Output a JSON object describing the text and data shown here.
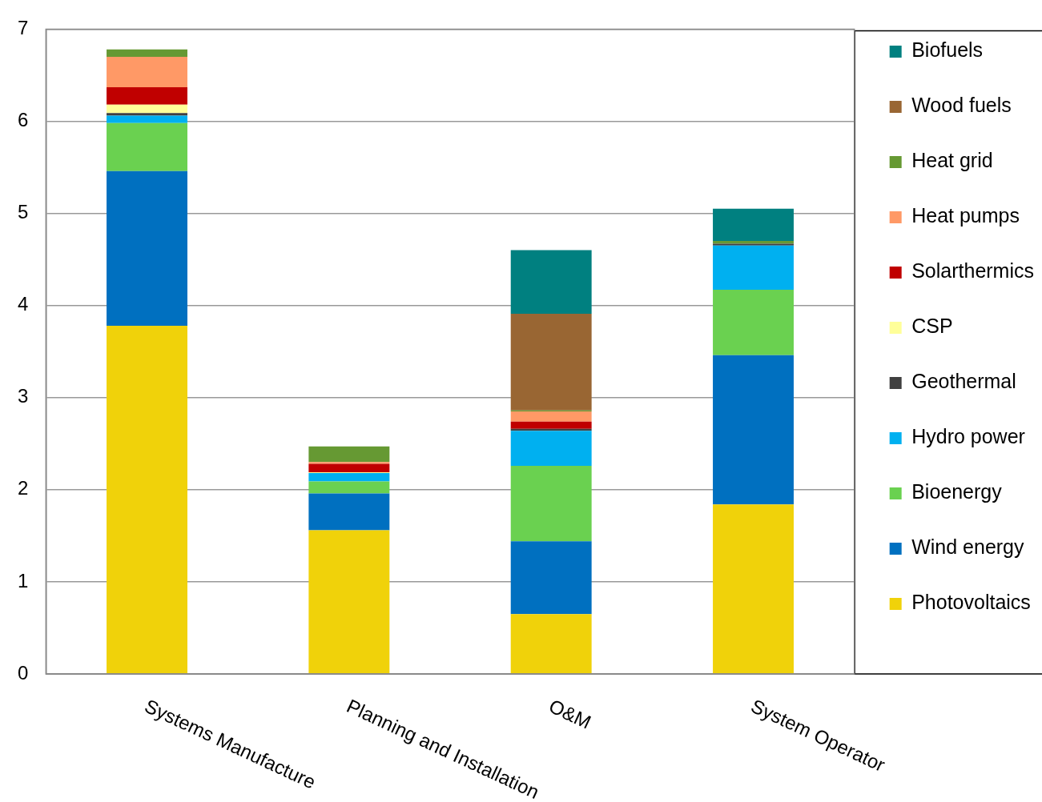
{
  "chart_data": {
    "type": "bar",
    "stacked": true,
    "categories": [
      "Systems Manufacture",
      "Planning and Installation",
      "O&M",
      "System Operator"
    ],
    "series": [
      {
        "name": "Photovoltaics",
        "color": "#f0d20a",
        "values": [
          3.78,
          1.56,
          0.65,
          1.84
        ]
      },
      {
        "name": "Wind energy",
        "color": "#0070c0",
        "values": [
          1.68,
          0.4,
          0.79,
          1.62
        ]
      },
      {
        "name": "Bioenergy",
        "color": "#6ad150",
        "values": [
          0.52,
          0.13,
          0.82,
          0.71
        ]
      },
      {
        "name": "Hydro power",
        "color": "#00b0f0",
        "values": [
          0.08,
          0.09,
          0.38,
          0.48
        ]
      },
      {
        "name": "Geothermal",
        "color": "#404040",
        "values": [
          0.03,
          0,
          0.02,
          0.02
        ]
      },
      {
        "name": "CSP",
        "color": "#ffff99",
        "values": [
          0.09,
          0.01,
          0,
          0
        ]
      },
      {
        "name": "Solarthermics",
        "color": "#c00000",
        "values": [
          0.19,
          0.09,
          0.08,
          0
        ]
      },
      {
        "name": "Heat pumps",
        "color": "#ff9966",
        "values": [
          0.33,
          0.02,
          0.11,
          0
        ]
      },
      {
        "name": "Heat grid",
        "color": "#669933",
        "values": [
          0.08,
          0.17,
          0.01,
          0.03
        ]
      },
      {
        "name": "Wood fuels",
        "color": "#996633",
        "values": [
          0,
          0,
          1.05,
          0
        ]
      },
      {
        "name": "Biofuels",
        "color": "#008080",
        "values": [
          0,
          0,
          0.69,
          0.35
        ]
      }
    ],
    "ylim": [
      0,
      7
    ],
    "yticks": [
      0,
      1,
      2,
      3,
      4,
      5,
      6,
      7
    ],
    "grid": "y",
    "legend": "right"
  }
}
